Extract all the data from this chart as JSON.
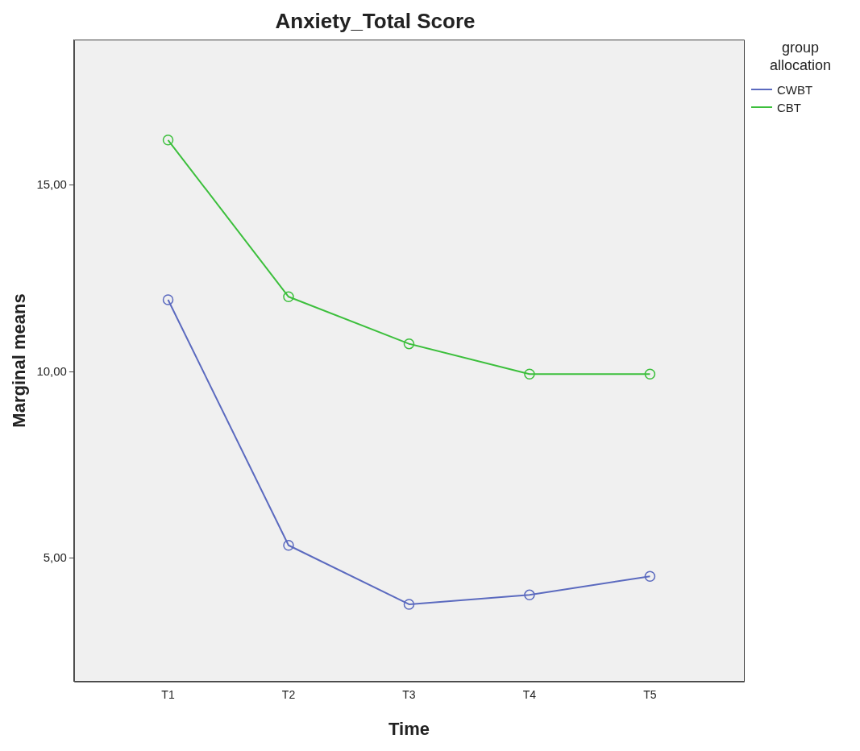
{
  "chart_data": {
    "type": "line",
    "title": "Anxiety_Total Score",
    "xlabel": "Time",
    "ylabel": "Marginal means",
    "legend_title": "group allocation",
    "categories": [
      "T1",
      "T2",
      "T3",
      "T4",
      "T5"
    ],
    "series": [
      {
        "name": "CWBT",
        "color": "#5b6abf",
        "values": [
          11.93,
          5.35,
          3.77,
          4.02,
          4.52
        ]
      },
      {
        "name": "CBT",
        "color": "#3cbf3c",
        "values": [
          16.21,
          12.01,
          10.75,
          9.94,
          9.94
        ]
      }
    ],
    "ylim": [
      1.7,
      18.9
    ],
    "yticks": [
      {
        "value": 5,
        "label": "5,00"
      },
      {
        "value": 10,
        "label": "10,00"
      },
      {
        "value": 15,
        "label": "15,00"
      }
    ],
    "grid": false,
    "legend": "top right",
    "marker": "circle",
    "line_style": "solid"
  }
}
